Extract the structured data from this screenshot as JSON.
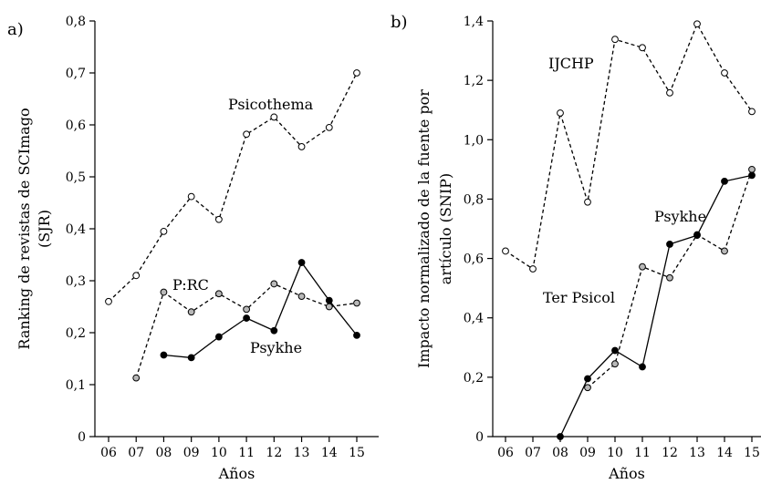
{
  "chart_data": [
    {
      "type": "line",
      "panel_label": "a)",
      "xlabel": "Años",
      "ylabel_lines": [
        "Ranking de revistas de SCImago",
        "(SJR)"
      ],
      "x": [
        "06",
        "07",
        "08",
        "09",
        "10",
        "11",
        "12",
        "13",
        "14",
        "15"
      ],
      "ylim": [
        0,
        0.8
      ],
      "yticks": [
        "0",
        "0,1",
        "0,2",
        "0,3",
        "0,4",
        "0,5",
        "0,6",
        "0,7",
        "0,8"
      ],
      "grid": false,
      "series": [
        {
          "name": "Psicothema",
          "line": "dashed",
          "marker": "open",
          "values": [
            0.26,
            0.31,
            0.395,
            0.462,
            0.418,
            0.582,
            0.615,
            0.558,
            0.595,
            0.7
          ]
        },
        {
          "name": "P:RC",
          "line": "dashed",
          "marker": "gray",
          "values": [
            null,
            0.113,
            0.278,
            0.24,
            0.275,
            0.245,
            0.294,
            0.27,
            0.25,
            0.257
          ]
        },
        {
          "name": "Psykhe",
          "line": "solid",
          "marker": "filled",
          "values": [
            null,
            null,
            0.157,
            0.152,
            0.192,
            0.228,
            0.204,
            0.335,
            0.262,
            0.195
          ]
        }
      ]
    },
    {
      "type": "line",
      "panel_label": "b)",
      "xlabel": "Años",
      "ylabel_lines": [
        "Impacto normalizado de la fuente por",
        "artículo (SNIP)"
      ],
      "x": [
        "06",
        "07",
        "08",
        "09",
        "10",
        "11",
        "12",
        "13",
        "14",
        "15"
      ],
      "ylim": [
        0,
        1.4
      ],
      "yticks": [
        "0",
        "0,2",
        "0,4",
        "0,6",
        "0,8",
        "1,0",
        "1,2",
        "1,4"
      ],
      "grid": false,
      "series": [
        {
          "name": "IJCHP",
          "line": "dashed",
          "marker": "open",
          "values": [
            0.625,
            0.565,
            1.09,
            0.79,
            1.338,
            1.31,
            1.158,
            1.39,
            1.225,
            1.095
          ]
        },
        {
          "name": "Ter Psicol",
          "line": "dashed",
          "marker": "gray",
          "values": [
            null,
            null,
            null,
            0.165,
            0.245,
            0.572,
            0.535,
            0.68,
            0.625,
            0.9
          ]
        },
        {
          "name": "Psykhe",
          "line": "solid",
          "marker": "filled",
          "values": [
            null,
            null,
            0.0,
            0.195,
            0.29,
            0.235,
            0.648,
            0.678,
            0.86,
            0.88
          ]
        }
      ]
    }
  ]
}
